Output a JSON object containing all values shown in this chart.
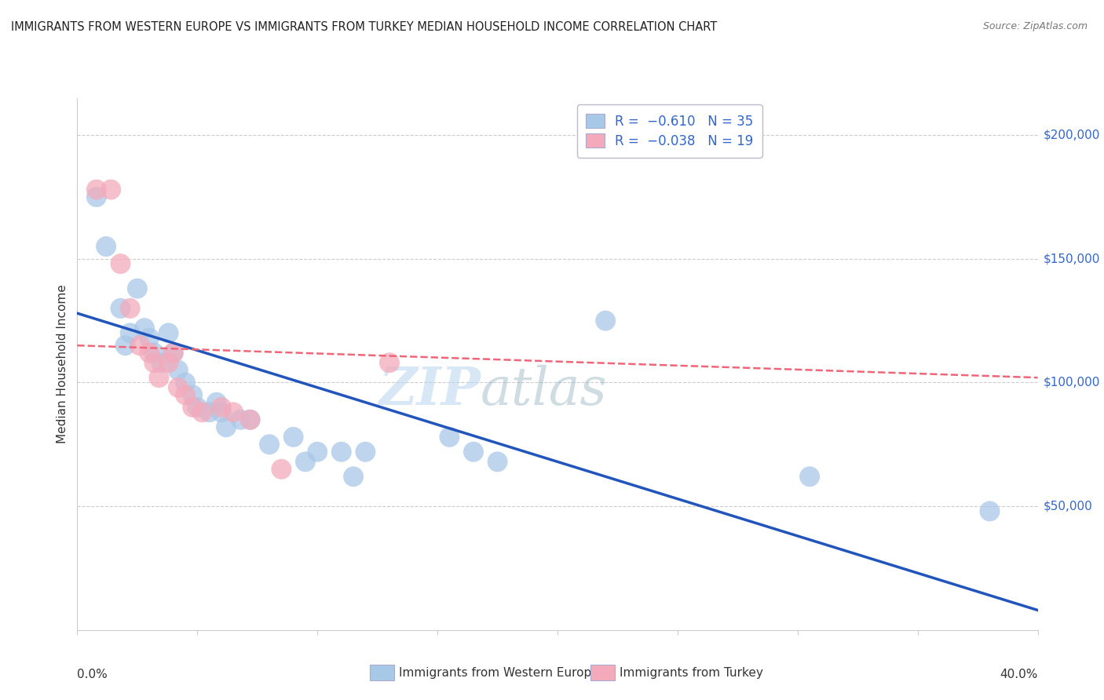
{
  "title": "IMMIGRANTS FROM WESTERN EUROPE VS IMMIGRANTS FROM TURKEY MEDIAN HOUSEHOLD INCOME CORRELATION CHART",
  "source": "Source: ZipAtlas.com",
  "ylabel": "Median Household Income",
  "ytick_values": [
    50000,
    100000,
    150000,
    200000
  ],
  "ymin": 0,
  "ymax": 215000,
  "xmin": 0.0,
  "xmax": 0.4,
  "legend_label_blue": "Immigrants from Western Europe",
  "legend_label_pink": "Immigrants from Turkey",
  "blue_color": "#A8C8E8",
  "pink_color": "#F4AABB",
  "line_blue": "#2255BB",
  "line_pink": "#EE6677",
  "watermark_zip": "ZIP",
  "watermark_atlas": "atlas",
  "blue_dots": [
    [
      0.008,
      175000
    ],
    [
      0.012,
      155000
    ],
    [
      0.018,
      130000
    ],
    [
      0.02,
      115000
    ],
    [
      0.022,
      120000
    ],
    [
      0.025,
      138000
    ],
    [
      0.028,
      122000
    ],
    [
      0.03,
      118000
    ],
    [
      0.032,
      112000
    ],
    [
      0.035,
      108000
    ],
    [
      0.038,
      120000
    ],
    [
      0.04,
      112000
    ],
    [
      0.042,
      105000
    ],
    [
      0.045,
      100000
    ],
    [
      0.048,
      95000
    ],
    [
      0.05,
      90000
    ],
    [
      0.055,
      88000
    ],
    [
      0.058,
      92000
    ],
    [
      0.06,
      88000
    ],
    [
      0.062,
      82000
    ],
    [
      0.068,
      85000
    ],
    [
      0.072,
      85000
    ],
    [
      0.08,
      75000
    ],
    [
      0.09,
      78000
    ],
    [
      0.095,
      68000
    ],
    [
      0.1,
      72000
    ],
    [
      0.11,
      72000
    ],
    [
      0.115,
      62000
    ],
    [
      0.12,
      72000
    ],
    [
      0.155,
      78000
    ],
    [
      0.165,
      72000
    ],
    [
      0.175,
      68000
    ],
    [
      0.22,
      125000
    ],
    [
      0.305,
      62000
    ],
    [
      0.38,
      48000
    ]
  ],
  "pink_dots": [
    [
      0.008,
      178000
    ],
    [
      0.014,
      178000
    ],
    [
      0.018,
      148000
    ],
    [
      0.022,
      130000
    ],
    [
      0.026,
      115000
    ],
    [
      0.03,
      112000
    ],
    [
      0.032,
      108000
    ],
    [
      0.034,
      102000
    ],
    [
      0.038,
      108000
    ],
    [
      0.04,
      112000
    ],
    [
      0.042,
      98000
    ],
    [
      0.045,
      95000
    ],
    [
      0.048,
      90000
    ],
    [
      0.052,
      88000
    ],
    [
      0.06,
      90000
    ],
    [
      0.065,
      88000
    ],
    [
      0.072,
      85000
    ],
    [
      0.085,
      65000
    ],
    [
      0.13,
      108000
    ]
  ],
  "blue_line_x": [
    0.0,
    0.4
  ],
  "blue_line_y": [
    128000,
    8000
  ],
  "pink_line_x": [
    0.0,
    0.4
  ],
  "pink_line_y": [
    115000,
    102000
  ],
  "grid_color": "#CCCCCC",
  "background_color": "#FFFFFF",
  "title_color": "#222222",
  "axis_color": "#333333",
  "right_ytick_color": "#3366CC"
}
